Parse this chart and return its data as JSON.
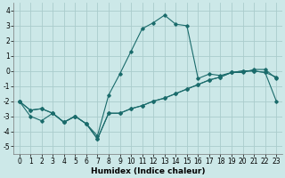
{
  "xlabel": "Humidex (Indice chaleur)",
  "background_color": "#cce8e8",
  "grid_color": "#aacccc",
  "line_color": "#1a6b6b",
  "xlim": [
    -0.5,
    23.5
  ],
  "ylim": [
    -5.5,
    4.5
  ],
  "xticks": [
    0,
    1,
    2,
    3,
    4,
    5,
    6,
    7,
    8,
    9,
    10,
    11,
    12,
    13,
    14,
    15,
    16,
    17,
    18,
    19,
    20,
    21,
    22,
    23
  ],
  "yticks": [
    -5,
    -4,
    -3,
    -2,
    -1,
    0,
    1,
    2,
    3,
    4
  ],
  "x": [
    0,
    1,
    2,
    3,
    4,
    5,
    6,
    7,
    8,
    9,
    10,
    11,
    12,
    13,
    14,
    15,
    16,
    17,
    18,
    19,
    20,
    21,
    22,
    23
  ],
  "y_main": [
    -2.0,
    -2.6,
    -2.5,
    -2.8,
    -3.4,
    -3.0,
    -3.5,
    -4.3,
    -1.6,
    -0.2,
    1.3,
    2.8,
    3.2,
    3.7,
    3.1,
    3.0,
    -0.5,
    -0.2,
    -0.3,
    -0.1,
    -0.1,
    0.1,
    0.1,
    -0.5
  ],
  "y_line2": [
    -2.0,
    -2.6,
    -2.5,
    -2.8,
    -3.4,
    -3.0,
    -3.5,
    -4.5,
    -2.8,
    -2.8,
    -2.5,
    -2.3,
    -2.0,
    -1.8,
    -1.5,
    -1.2,
    -0.9,
    -0.6,
    -0.4,
    -0.1,
    0.0,
    0.0,
    -0.1,
    -0.4
  ],
  "y_line3": [
    -2.0,
    -3.0,
    -3.3,
    -2.8,
    -3.4,
    -3.0,
    -3.5,
    -4.5,
    -2.8,
    -2.8,
    -2.5,
    -2.3,
    -2.0,
    -1.8,
    -1.5,
    -1.2,
    -0.9,
    -0.6,
    -0.4,
    -0.1,
    0.0,
    0.0,
    -0.1,
    -2.0
  ],
  "xlabel_fontsize": 6.5,
  "tick_fontsize": 5.5,
  "lw": 0.8,
  "ms": 1.8
}
